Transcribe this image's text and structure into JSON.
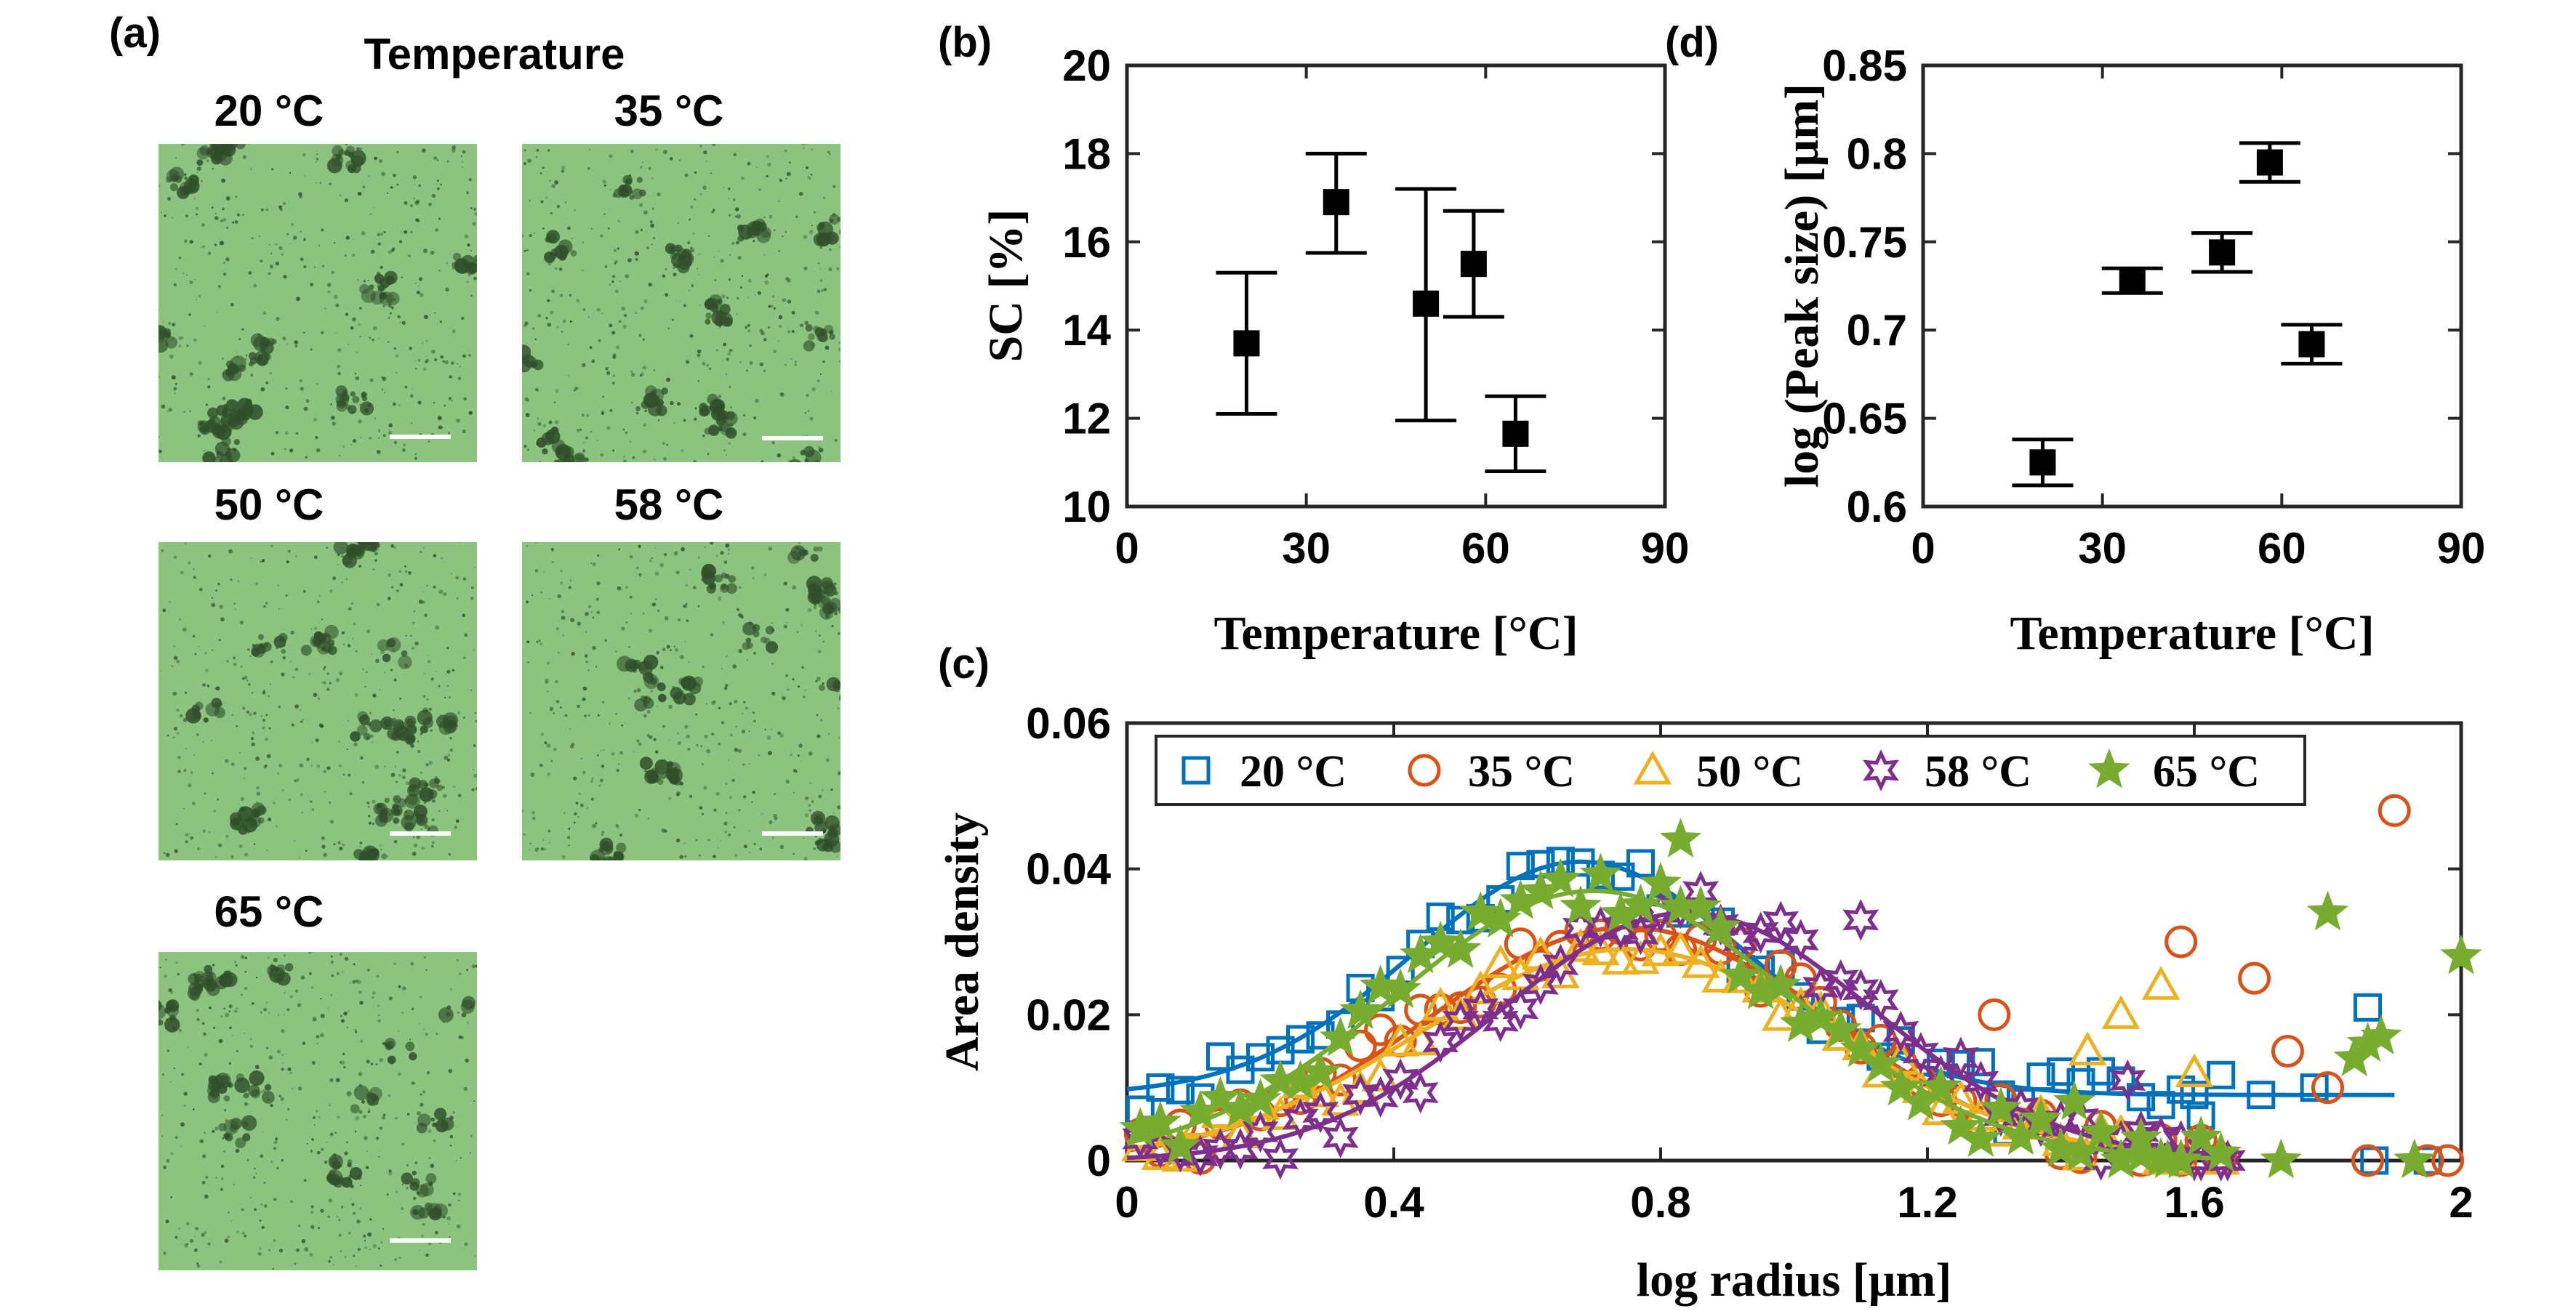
{
  "panel_a": {
    "label": "(a)",
    "header": "Temperature",
    "images": [
      {
        "temp": "20 °C"
      },
      {
        "temp": "35 °C"
      },
      {
        "temp": "50 °C"
      },
      {
        "temp": "58 °C"
      },
      {
        "temp": "65 °C"
      }
    ]
  },
  "colors": {
    "c20": "#0072BD",
    "c35": "#D95319",
    "c50": "#EDB120",
    "c58": "#7E2F8E",
    "c65": "#77AC30",
    "micro_bg": "#8cc47f",
    "micro_dark": "#2f4f2a"
  },
  "chart_data": [
    {
      "id": "b",
      "label": "(b)",
      "type": "scatter",
      "title": "",
      "xlabel": "Temperature [°C]",
      "ylabel": "SC [%]",
      "xlim": [
        0,
        90
      ],
      "ylim": [
        10,
        20
      ],
      "xticks": [
        0,
        30,
        60,
        90
      ],
      "yticks": [
        10,
        12,
        14,
        16,
        18,
        20
      ],
      "x": [
        20,
        35,
        50,
        58,
        65
      ],
      "y": [
        13.7,
        16.9,
        14.6,
        15.5,
        11.65
      ],
      "err_low": [
        12.1,
        15.75,
        11.95,
        14.3,
        10.8
      ],
      "err_high": [
        15.3,
        18.0,
        17.2,
        16.7,
        12.5
      ]
    },
    {
      "id": "d",
      "label": "(d)",
      "type": "scatter",
      "title": "",
      "xlabel": "Temperature [°C]",
      "ylabel": "log (Peak size) [μm]",
      "xlim": [
        0,
        90
      ],
      "ylim": [
        0.6,
        0.85
      ],
      "xticks": [
        0,
        30,
        60,
        90
      ],
      "yticks": [
        0.6,
        0.65,
        0.7,
        0.75,
        0.8,
        0.85
      ],
      "ytick_labels": [
        "0.6",
        "0.65",
        "0.7",
        "0.75",
        "0.8",
        "0.85"
      ],
      "x": [
        20,
        35,
        50,
        58,
        65
      ],
      "y": [
        0.625,
        0.728,
        0.744,
        0.795,
        0.692
      ],
      "err_low": [
        0.612,
        0.721,
        0.733,
        0.784,
        0.681
      ],
      "err_high": [
        0.638,
        0.735,
        0.755,
        0.806,
        0.703
      ]
    },
    {
      "id": "c",
      "label": "(c)",
      "type": "line",
      "title": "",
      "xlabel": "log radius [μm]",
      "ylabel": "Area density",
      "xlim": [
        0,
        2
      ],
      "ylim": [
        0,
        0.06
      ],
      "xticks": [
        0,
        0.4,
        0.8,
        1.2,
        1.6,
        2
      ],
      "xtick_labels": [
        "0",
        "0.4",
        "0.8",
        "1.2",
        "1.6",
        "2"
      ],
      "yticks": [
        0,
        0.02,
        0.04,
        0.06
      ],
      "ytick_labels": [
        "0",
        "0.02",
        "0.04",
        "0.06"
      ],
      "legend_position": "top",
      "series": [
        {
          "name": "20 °C",
          "marker": "square",
          "fit": {
            "baseline": 0.009,
            "amp": 0.032,
            "mu": 0.68,
            "sigma": 0.25,
            "xmax": 1.9
          },
          "outliers": [
            [
              1.32,
              0.004
            ],
            [
              1.6,
              0.009
            ],
            [
              1.7,
              0.009
            ],
            [
              1.78,
              0.01
            ],
            [
              1.86,
              0.021
            ],
            [
              1.87,
              0.0
            ],
            [
              1.95,
              0.0
            ]
          ]
        },
        {
          "name": "35 °C",
          "marker": "circle",
          "fit": {
            "baseline": 0.0,
            "amp": 0.032,
            "mu": 0.75,
            "sigma": 0.3,
            "xmax": 1.65
          },
          "outliers": [
            [
              1.3,
              0.02
            ],
            [
              1.58,
              0.03
            ],
            [
              1.69,
              0.025
            ],
            [
              1.74,
              0.015
            ],
            [
              1.8,
              0.01
            ],
            [
              1.9,
              0.048
            ],
            [
              1.86,
              0.0
            ],
            [
              1.95,
              0.0
            ],
            [
              1.98,
              0.0
            ]
          ]
        },
        {
          "name": "50 °C",
          "marker": "triangle",
          "fit": {
            "baseline": 0.0,
            "amp": 0.029,
            "mu": 0.75,
            "sigma": 0.31,
            "xmax": 1.65
          },
          "outliers": [
            [
              1.44,
              0.015
            ],
            [
              1.49,
              0.02
            ],
            [
              1.55,
              0.024
            ],
            [
              1.6,
              0.012
            ]
          ]
        },
        {
          "name": "58 °C",
          "marker": "hexagram",
          "fit": {
            "baseline": 0.0,
            "amp": 0.034,
            "mu": 0.84,
            "sigma": 0.28,
            "xmax": 1.65
          },
          "outliers": [
            [
              1.1,
              0.033
            ],
            [
              1.5,
              0.011
            ],
            [
              1.6,
              0.0
            ],
            [
              1.65,
              0.0
            ]
          ]
        },
        {
          "name": "65 °C",
          "marker": "pentagram",
          "fit": {
            "baseline": 0.0,
            "amp": 0.037,
            "mu": 0.7,
            "sigma": 0.3,
            "xmax": 1.65
          },
          "outliers": [
            [
              0.83,
              0.044
            ],
            [
              1.42,
              0.008
            ],
            [
              1.52,
              0.003
            ],
            [
              1.56,
              0.0
            ],
            [
              1.73,
              0.0
            ],
            [
              1.8,
              0.034
            ],
            [
              1.84,
              0.014
            ],
            [
              1.86,
              0.016
            ],
            [
              1.88,
              0.017
            ],
            [
              1.93,
              0.0
            ],
            [
              2.0,
              0.028
            ]
          ]
        }
      ]
    }
  ]
}
